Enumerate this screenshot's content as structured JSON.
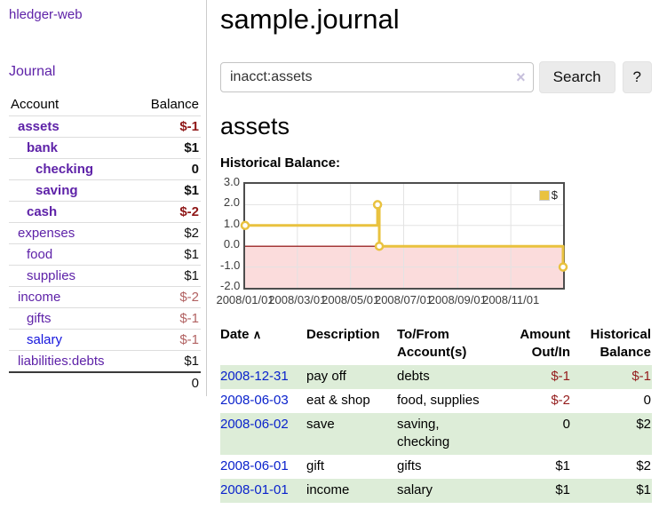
{
  "app": {
    "brand": "hledger-web"
  },
  "nav": {
    "journal": "Journal"
  },
  "sidebar": {
    "header": {
      "account": "Account",
      "balance": "Balance"
    },
    "accounts": [
      {
        "name": "assets",
        "balance": "$-1"
      },
      {
        "name": "bank",
        "balance": "$1"
      },
      {
        "name": "checking",
        "balance": "0"
      },
      {
        "name": "saving",
        "balance": "$1"
      },
      {
        "name": "cash",
        "balance": "$-2"
      },
      {
        "name": "expenses",
        "balance": "$2"
      },
      {
        "name": "food",
        "balance": "$1"
      },
      {
        "name": "supplies",
        "balance": "$1"
      },
      {
        "name": "income",
        "balance": "$-2"
      },
      {
        "name": "gifts",
        "balance": "$-1"
      },
      {
        "name": "salary",
        "balance": "$-1"
      },
      {
        "name": "liabilities:debts",
        "balance": "$1"
      }
    ],
    "total": "0"
  },
  "main": {
    "title": "sample.journal",
    "search": {
      "value": "inacct:assets",
      "clear_icon": "×",
      "button": "Search",
      "help": "?"
    },
    "account_heading": "assets",
    "chart_heading": "Historical Balance:"
  },
  "chart_data": {
    "type": "line",
    "title": "Historical Balance",
    "series": [
      {
        "name": "$",
        "color": "#e9c23f",
        "step": true,
        "point_style": "open-circle",
        "points": [
          [
            "2008-01-01",
            1
          ],
          [
            "2008-06-01",
            2
          ],
          [
            "2008-06-03",
            0
          ],
          [
            "2008-12-31",
            -1
          ]
        ]
      }
    ],
    "x_range": [
      "2008-01-01",
      "2008-12-31"
    ],
    "ylim": [
      -2,
      3
    ],
    "x_ticks": [
      "2008/01/01",
      "2008/03/01",
      "2008/05/01",
      "2008/07/01",
      "2008/09/01",
      "2008/11/01"
    ],
    "y_ticks": [
      3.0,
      2.0,
      1.0,
      0.0,
      -1.0,
      -2.0
    ],
    "grid": true,
    "legend": {
      "label": "$",
      "position": "top-right"
    },
    "negative_region_color": "#fbdcdc",
    "zero_line_color": "#8b0000",
    "grid_color": "#e3e3e3"
  },
  "register": {
    "sort_icon": "∧",
    "headers": {
      "date": "Date",
      "description": "Description",
      "tofrom1": "To/From",
      "tofrom2": "Account(s)",
      "amount1": "Amount",
      "amount2": "Out/In",
      "hist1": "Historical",
      "hist2": "Balance"
    },
    "rows": [
      {
        "date": "2008-12-31",
        "description": "pay off",
        "accounts": "debts",
        "amount": "$-1",
        "balance": "$-1"
      },
      {
        "date": "2008-06-03",
        "description": "eat & shop",
        "accounts": "food, supplies",
        "amount": "$-2",
        "balance": "0"
      },
      {
        "date": "2008-06-02",
        "description": "save",
        "accounts": "saving,\nchecking",
        "amount": "0",
        "balance": "$2"
      },
      {
        "date": "2008-06-01",
        "description": "gift",
        "accounts": "gifts",
        "amount": "$1",
        "balance": "$2"
      },
      {
        "date": "2008-01-01",
        "description": "income",
        "accounts": "salary",
        "amount": "$1",
        "balance": "$1"
      }
    ]
  }
}
